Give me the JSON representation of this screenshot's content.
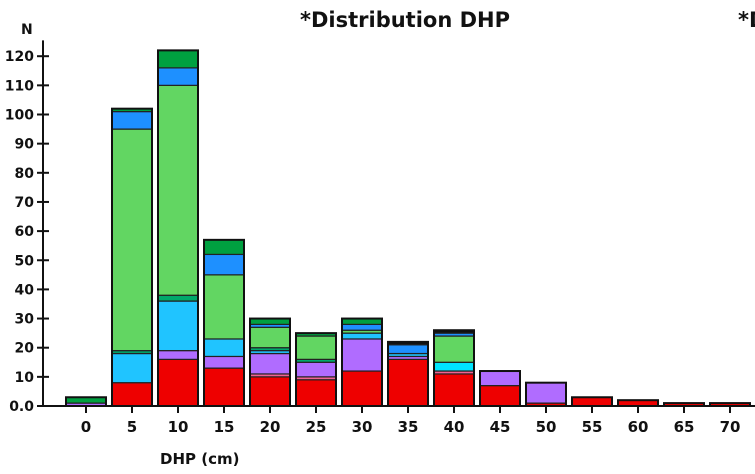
{
  "chart_data": {
    "type": "bar",
    "stacked": true,
    "title": "*Distribution DHP",
    "title_cut": "*D",
    "xlabel": "DHP (cm)",
    "ylabel": "N",
    "ylim": [
      0,
      122
    ],
    "yticks": [
      0,
      10,
      20,
      30,
      40,
      50,
      60,
      70,
      80,
      90,
      100,
      110,
      120
    ],
    "ytick_labels": [
      "0.0",
      "10",
      "20",
      "30",
      "40",
      "50",
      "60",
      "70",
      "80",
      "90",
      "100",
      "110",
      "120"
    ],
    "categories": [
      "0",
      "5",
      "10",
      "15",
      "20",
      "25",
      "30",
      "35",
      "40",
      "45",
      "50",
      "55",
      "60",
      "65",
      "70"
    ],
    "legend": "none",
    "grid": false,
    "series": [
      {
        "color": "#ee0000",
        "values": [
          0,
          8,
          16,
          13,
          10,
          9,
          12,
          16,
          11,
          7,
          1,
          3,
          2,
          1,
          1
        ]
      },
      {
        "color": "#f06292",
        "values": [
          0,
          0,
          0,
          0,
          1,
          1,
          0,
          0,
          1,
          0,
          0,
          0,
          0,
          0,
          0
        ]
      },
      {
        "color": "#b06cff",
        "values": [
          1,
          0,
          3,
          4,
          7,
          5,
          11,
          1,
          0,
          5,
          7,
          0,
          0,
          0,
          0
        ]
      },
      {
        "color": "#6a3aa8",
        "values": [
          0,
          0,
          0,
          0,
          0,
          0,
          0,
          0,
          0,
          0,
          0,
          0,
          0,
          0,
          0
        ]
      },
      {
        "color": "#00e5ff",
        "values": [
          0,
          0,
          0,
          0,
          0,
          0,
          0,
          0,
          3,
          0,
          0,
          0,
          0,
          0,
          0
        ]
      },
      {
        "color": "#20c4ff",
        "values": [
          0,
          10,
          17,
          6,
          1,
          0,
          2,
          1,
          0,
          0,
          0,
          0,
          0,
          0,
          0
        ]
      },
      {
        "color": "#00a86b",
        "values": [
          0,
          1,
          2,
          0,
          1,
          1,
          0,
          0,
          0,
          0,
          0,
          0,
          0,
          0,
          0
        ]
      },
      {
        "color": "#62d662",
        "values": [
          0,
          76,
          72,
          22,
          7,
          8,
          1,
          0,
          9,
          0,
          0,
          0,
          0,
          0,
          0
        ]
      },
      {
        "color": "#1e90ff",
        "values": [
          0,
          6,
          6,
          7,
          1,
          0,
          2,
          3,
          1,
          0,
          0,
          0,
          0,
          0,
          0
        ]
      },
      {
        "color": "#00a040",
        "values": [
          2,
          1,
          6,
          5,
          2,
          1,
          2,
          0,
          0,
          0,
          0,
          0,
          0,
          0,
          0
        ]
      },
      {
        "color": "#111111",
        "values": [
          0,
          0,
          0,
          0,
          0,
          0,
          0,
          1,
          1,
          0,
          0,
          0,
          0,
          0,
          0
        ]
      }
    ]
  }
}
